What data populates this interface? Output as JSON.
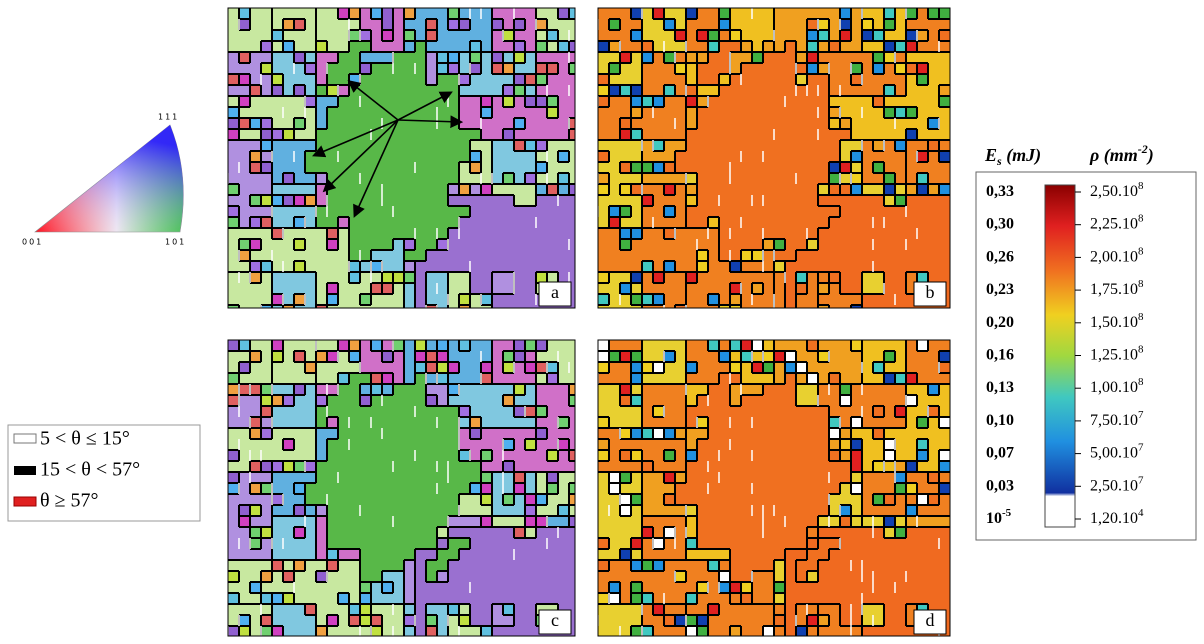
{
  "ipf_key": {
    "top": "111",
    "left": "001",
    "right": "101"
  },
  "legend": {
    "items": [
      {
        "label": "5 < θ ≤ 15°"
      },
      {
        "label": "15 < θ < 57°"
      },
      {
        "label": "θ ≥ 57°"
      }
    ]
  },
  "panels": [
    "a",
    "b",
    "c",
    "d"
  ],
  "colorbar": {
    "energy_header": {
      "symbol": "E",
      "subscript": "s",
      "unit": "(mJ)"
    },
    "density_header": {
      "symbol": "ρ (mm",
      "superscript": "-2",
      "close": ")"
    },
    "rows": [
      {
        "energy": "0,33",
        "density": "2,50.10",
        "density_exp": "8"
      },
      {
        "energy": "0,30",
        "density": "2,25.10",
        "density_exp": "8"
      },
      {
        "energy": "0,26",
        "density": "2,00.10",
        "density_exp": "8"
      },
      {
        "energy": "0,23",
        "density": "1,75.10",
        "density_exp": "8"
      },
      {
        "energy": "0,20",
        "density": "1,50.10",
        "density_exp": "8"
      },
      {
        "energy": "0,16",
        "density": "1,25.10",
        "density_exp": "8"
      },
      {
        "energy": "0,13",
        "density": "1,00.10",
        "density_exp": "8"
      },
      {
        "energy": "0,10",
        "density": "7,50.10",
        "density_exp": "7"
      },
      {
        "energy": "0,07",
        "density": "5,00.10",
        "density_exp": "7"
      },
      {
        "energy": "0,03",
        "density": "2,50.10",
        "density_exp": "7"
      },
      {
        "energy": "10",
        "energy_exp": "-5",
        "density": "1,20.10",
        "density_exp": "4"
      }
    ]
  }
}
